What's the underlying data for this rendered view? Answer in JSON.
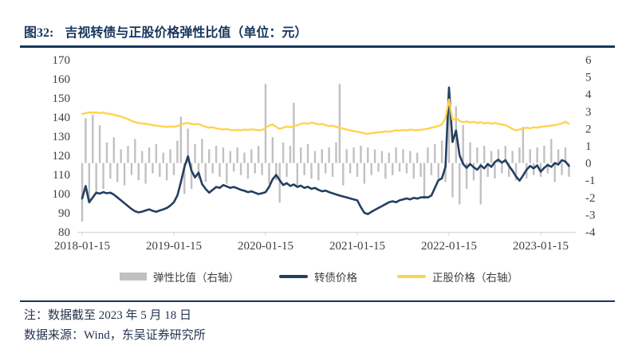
{
  "figure": {
    "label": "图32:",
    "title": "吉视转债与正股价格弹性比值（单位：元）"
  },
  "notes": {
    "line1": "注：数据截至 2023 年 5 月 18 日",
    "line2": "数据来源：Wind，东吴证券研究所"
  },
  "colors": {
    "accent_navy": "#17365d",
    "bond_line": "#243f60",
    "stock_line": "#ffd34f",
    "ratio_bar": "#c1c1c1",
    "axis_text": "#3f3f3f",
    "axis_line": "#d8d8d8"
  },
  "chart_data": {
    "type": "bar+line combo, dual axis",
    "title": "吉视转债与正股价格弹性比值（单位：元）",
    "x_tick_labels": [
      "2018-01-15",
      "2019-01-15",
      "2020-01-15",
      "2021-01-15",
      "2022-01-15",
      "2023-01-15"
    ],
    "x_tick_indices": [
      0,
      26,
      52,
      78,
      104,
      130
    ],
    "x_sampling": "biweekly samples 2018-01-15 to 2023-05-18",
    "left_axis": {
      "min": 80,
      "max": 170,
      "step": 10,
      "ticks": [
        170,
        160,
        150,
        140,
        130,
        120,
        110,
        100,
        90,
        80
      ]
    },
    "right_axis": {
      "min": -4,
      "max": 6,
      "step": 1,
      "ticks": [
        6,
        5,
        4,
        3,
        2,
        1,
        0,
        -1,
        -2,
        -3,
        -4
      ]
    },
    "grid": false,
    "legend_position": "bottom",
    "series": [
      {
        "name": "弹性比值（右轴）",
        "type": "bar",
        "axis": "right",
        "color": "#c1c1c1",
        "values": [
          -3.4,
          2.6,
          -2.2,
          2.8,
          -1.8,
          2.2,
          -1.5,
          1.2,
          -0.9,
          1.5,
          -1.1,
          0.8,
          -1.3,
          1,
          -0.7,
          1.4,
          -1,
          0.7,
          -1.2,
          0.9,
          -0.6,
          1.1,
          -0.8,
          0.6,
          -1,
          0.8,
          -0.7,
          1.3,
          2.7,
          -1.8,
          2,
          -1.5,
          1.1,
          -0.9,
          1.4,
          -1.1,
          0.8,
          -0.6,
          1,
          -0.8,
          0.9,
          -1.2,
          0.7,
          -0.5,
          0.9,
          -0.7,
          0.6,
          -0.9,
          0.8,
          -0.6,
          1,
          -0.7,
          4.6,
          -1.2,
          1.5,
          -1,
          -2.3,
          1.2,
          -0.8,
          1,
          3.5,
          -1.4,
          0.9,
          -0.7,
          1.1,
          -0.9,
          0.7,
          -1,
          0.8,
          -0.6,
          0.9,
          -0.8,
          1.2,
          4.6,
          -1.3,
          0.8,
          -0.6,
          0.9,
          -0.8,
          1,
          -1.2,
          0.9,
          -0.7,
          0.8,
          -0.5,
          0.7,
          -0.9,
          0.6,
          -0.7,
          0.9,
          -0.5,
          0.8,
          -0.6,
          0.7,
          -0.9,
          0.6,
          -0.8,
          -2.1,
          0.9,
          -0.7,
          1.1,
          -0.9,
          1.3,
          -1.1,
          4,
          -2,
          3.3,
          -2.4,
          2.2,
          -1.5,
          1.2,
          -1,
          0.9,
          -2.4,
          1,
          -0.8,
          0.7,
          -0.9,
          0.8,
          -0.6,
          1,
          -0.8,
          0.7,
          -1,
          0.9,
          2.1,
          -0.9,
          0.8,
          -0.7,
          0.9,
          -0.8,
          1,
          -0.6,
          1.4,
          -1.1,
          0.8,
          -0.7,
          0.9,
          -0.8
        ]
      },
      {
        "name": "转债价格",
        "type": "line",
        "axis": "left",
        "color": "#243f60",
        "values": [
          97.5,
          104,
          95.5,
          98,
          100.5,
          100,
          100.8,
          100.2,
          100.5,
          99.5,
          98,
          96.5,
          95,
          93.5,
          92,
          90.8,
          90.2,
          90.6,
          91.2,
          91.8,
          91,
          90.5,
          91.2,
          91.8,
          92.5,
          93.8,
          95.5,
          99,
          106,
          114,
          119.5,
          112,
          108.5,
          111,
          105,
          102.5,
          100.5,
          102,
          103.5,
          103,
          104.5,
          103.8,
          103,
          103.5,
          102.8,
          102,
          101.5,
          100.8,
          101.2,
          100.5,
          99.8,
          100.2,
          100.8,
          103.5,
          107.5,
          109.8,
          107,
          104.5,
          105.5,
          104,
          104.8,
          103.5,
          104.2,
          103,
          103.6,
          102.5,
          103,
          102,
          101.2,
          101.6,
          100.8,
          100.2,
          99.6,
          99,
          98.5,
          98,
          97.5,
          97,
          96.5,
          93,
          90,
          89.3,
          90.5,
          91.5,
          92.5,
          93.5,
          94.5,
          95.5,
          96,
          95.5,
          96.5,
          97,
          97.5,
          97,
          97.8,
          97.4,
          98,
          98.2,
          98,
          99,
          103,
          107,
          108,
          114,
          155.5,
          127,
          133,
          120,
          115.5,
          113.5,
          115.5,
          113.8,
          112.5,
          114.8,
          113.2,
          115.5,
          114,
          116.5,
          117.8,
          116.2,
          117.5,
          114.5,
          112,
          109,
          106.8,
          109.5,
          112.5,
          114.5,
          113.2,
          114.8,
          111.5,
          113.5,
          115,
          114,
          116,
          115.2,
          117.5,
          116.8,
          114.5
        ]
      },
      {
        "name": "正股价格（右轴）",
        "type": "line",
        "axis": "right",
        "color": "#ffd34f",
        "values": [
          2.85,
          2.9,
          2.95,
          2.92,
          2.95,
          2.9,
          2.93,
          2.88,
          2.85,
          2.8,
          2.75,
          2.7,
          2.62,
          2.55,
          2.45,
          2.38,
          2.33,
          2.3,
          2.28,
          2.25,
          2.2,
          2.18,
          2.15,
          2.12,
          2.1,
          2.12,
          2.1,
          2.15,
          2.22,
          2.3,
          2.33,
          2.28,
          2.24,
          2.28,
          2.18,
          2.1,
          2.05,
          2.08,
          2.02,
          1.98,
          1.95,
          1.98,
          1.92,
          1.9,
          1.93,
          1.9,
          1.94,
          1.92,
          1.96,
          1.94,
          1.9,
          1.92,
          2.05,
          2.18,
          2.25,
          2.1,
          1.98,
          2.05,
          2.12,
          2.08,
          2.15,
          2.2,
          2.28,
          2.32,
          2.28,
          2.35,
          2.3,
          2.25,
          2.28,
          2.2,
          2.15,
          2.18,
          2.1,
          2.05,
          2,
          1.95,
          1.9,
          1.85,
          1.82,
          1.78,
          1.72,
          1.7,
          1.73,
          1.76,
          1.78,
          1.8,
          1.84,
          1.82,
          1.86,
          1.9,
          1.88,
          1.92,
          1.9,
          1.94,
          1.92,
          1.9,
          1.94,
          1.96,
          2,
          2.05,
          2.1,
          2.15,
          2.25,
          2.6,
          3.7,
          2.5,
          2.62,
          2.45,
          2.38,
          2.42,
          2.35,
          2.4,
          2.32,
          2.38,
          2.3,
          2.35,
          2.28,
          2.33,
          2.28,
          2.24,
          2.2,
          2.1,
          1.98,
          1.9,
          1.95,
          2,
          2.05,
          2.02,
          2.08,
          2.05,
          2.1,
          2.12,
          2.15,
          2.18,
          2.2,
          2.25,
          2.3,
          2.4,
          2.28
        ]
      }
    ]
  }
}
